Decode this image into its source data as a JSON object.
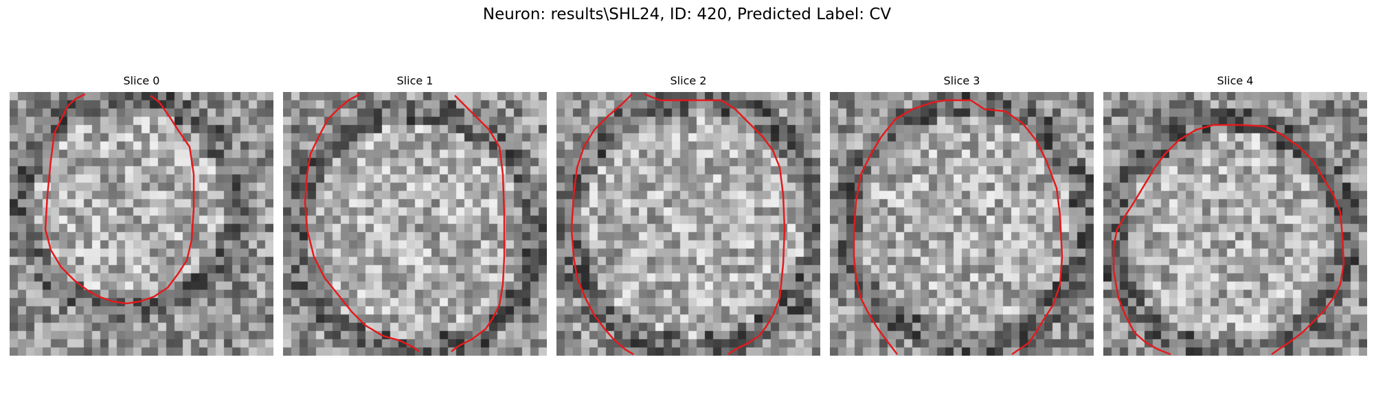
{
  "figure": {
    "title": "Neuron: results\\SHL24, ID: 420, Predicted Label: CV",
    "contour_color": "#e41a1c",
    "colormap": "gray",
    "grid_size": 32,
    "panels": [
      {
        "title": "Slice 0"
      },
      {
        "title": "Slice 1"
      },
      {
        "title": "Slice 2"
      },
      {
        "title": "Slice 3"
      },
      {
        "title": "Slice 4"
      }
    ]
  }
}
